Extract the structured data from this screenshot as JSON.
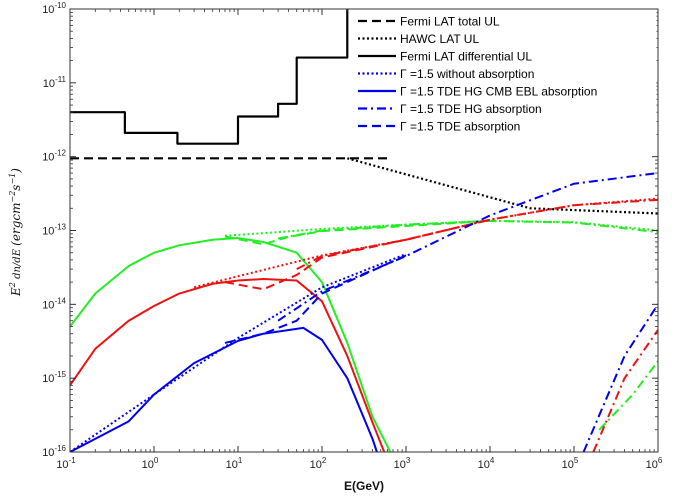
{
  "chart_data": {
    "type": "line",
    "title": "",
    "xlabel": "E(GeV)",
    "ylabel": "E^2 dn/dE (ergcm^-2 s^-1)",
    "xscale": "log",
    "yscale": "log",
    "xlim": [
      0.1,
      1000000
    ],
    "ylim": [
      1e-16,
      1e-10
    ],
    "x_ticks": [
      {
        "value": 0.1,
        "base": "10",
        "exp": "-1"
      },
      {
        "value": 1,
        "base": "10",
        "exp": "0"
      },
      {
        "value": 10,
        "base": "10",
        "exp": "1"
      },
      {
        "value": 100,
        "base": "10",
        "exp": "2"
      },
      {
        "value": 1000,
        "base": "10",
        "exp": "3"
      },
      {
        "value": 10000,
        "base": "10",
        "exp": "4"
      },
      {
        "value": 100000,
        "base": "10",
        "exp": "5"
      },
      {
        "value": 1000000,
        "base": "10",
        "exp": "6"
      }
    ],
    "y_ticks": [
      {
        "value": 1e-16,
        "base": "10",
        "exp": "-16"
      },
      {
        "value": 1e-15,
        "base": "10",
        "exp": "-15"
      },
      {
        "value": 1e-14,
        "base": "10",
        "exp": "-14"
      },
      {
        "value": 1e-13,
        "base": "10",
        "exp": "-13"
      },
      {
        "value": 1e-12,
        "base": "10",
        "exp": "-12"
      },
      {
        "value": 1e-11,
        "base": "10",
        "exp": "-11"
      },
      {
        "value": 1e-10,
        "base": "10",
        "exp": "-10"
      }
    ],
    "grid": false,
    "legend_position": "top-right",
    "legend": [
      {
        "label": "Fermi LAT total UL",
        "color": "#000000",
        "style": "dashed"
      },
      {
        "label": "HAWC LAT UL",
        "color": "#000000",
        "style": "dotted"
      },
      {
        "label": "Fermi LAT differential UL",
        "color": "#000000",
        "style": "solid"
      },
      {
        "label": "Γ =1.5 without absorption",
        "color": "#0000ee",
        "style": "dotted"
      },
      {
        "label": "Γ =1.5 TDE HG CMB EBL absorption",
        "color": "#0000ee",
        "style": "solid"
      },
      {
        "label": "Γ =1.5 TDE HG absorption",
        "color": "#0000ee",
        "style": "dashdot"
      },
      {
        "label": "Γ =1.5 TDE absorption",
        "color": "#0000ee",
        "style": "dashed"
      }
    ],
    "series": [
      {
        "group": "upper-limits",
        "color": "#000000",
        "style": "dashed",
        "points": [
          [
            0.1,
            9.5e-13
          ],
          [
            650,
            9.5e-13
          ]
        ]
      },
      {
        "group": "upper-limits",
        "color": "#000000",
        "style": "dotted",
        "points": [
          [
            200,
            9.5e-13
          ],
          [
            30000,
            2e-13
          ],
          [
            1000000,
            1.7e-13
          ]
        ]
      },
      {
        "group": "upper-limits",
        "color": "#000000",
        "style": "solid",
        "points": [
          [
            0.1,
            4e-12
          ],
          [
            0.45,
            4e-12
          ],
          [
            0.45,
            2.1e-12
          ],
          [
            1.9,
            2.1e-12
          ],
          [
            1.9,
            1.5e-12
          ],
          [
            10,
            1.5e-12
          ],
          [
            10,
            3.5e-12
          ],
          [
            30,
            3.5e-12
          ],
          [
            30,
            5.2e-12
          ],
          [
            50,
            5.2e-12
          ],
          [
            50,
            2.2e-11
          ],
          [
            200,
            2.2e-11
          ],
          [
            200,
            1e-10
          ]
        ]
      },
      {
        "group": "green",
        "color": "#22ee22",
        "style": "dotted",
        "points": [
          [
            7,
            8.5e-14
          ],
          [
            20,
            9.2e-14
          ],
          [
            100,
            1.05e-13
          ],
          [
            1000,
            1.2e-13
          ],
          [
            10000,
            1.35e-13
          ],
          [
            100000,
            1.3e-13
          ],
          [
            1000000,
            1e-13
          ]
        ]
      },
      {
        "group": "green",
        "color": "#22ee22",
        "style": "dashed",
        "points": [
          [
            7,
            8.3e-14
          ],
          [
            20,
            6.5e-14
          ],
          [
            40,
            8.2e-14
          ],
          [
            100,
            9.8e-14
          ],
          [
            1000,
            1.15e-13
          ],
          [
            10000,
            1.35e-13
          ]
        ]
      },
      {
        "group": "green",
        "color": "#22ee22",
        "style": "dashdot",
        "points": [
          [
            30,
            7.8e-14
          ],
          [
            100,
            1e-13
          ],
          [
            1000,
            1.2e-13
          ],
          [
            10000,
            1.35e-13
          ],
          [
            100000,
            1.28e-13
          ],
          [
            1000000,
            9.5e-14
          ]
        ]
      },
      {
        "group": "green",
        "color": "#22ee22",
        "style": "dashdot",
        "points": [
          [
            200000,
            2e-16
          ],
          [
            500000,
            6e-16
          ],
          [
            1000000,
            1.7e-15
          ]
        ]
      },
      {
        "group": "green",
        "color": "#22ee22",
        "style": "solid",
        "points": [
          [
            0.1,
            5e-15
          ],
          [
            0.2,
            1.4e-14
          ],
          [
            0.5,
            3.3e-14
          ],
          [
            1,
            5e-14
          ],
          [
            2,
            6.3e-14
          ],
          [
            5,
            7.5e-14
          ],
          [
            10,
            7.9e-14
          ],
          [
            20,
            7e-14
          ],
          [
            50,
            5e-14
          ],
          [
            100,
            2e-14
          ],
          [
            200,
            3e-15
          ],
          [
            400,
            3e-16
          ],
          [
            650,
            1e-16
          ]
        ]
      },
      {
        "group": "red",
        "color": "#ee1111",
        "style": "dotted",
        "points": [
          [
            3,
            1.7e-14
          ],
          [
            10,
            2.4e-14
          ],
          [
            100,
            4.6e-14
          ],
          [
            1000,
            7.5e-14
          ],
          [
            10000,
            1.4e-13
          ],
          [
            100000,
            2.2e-13
          ],
          [
            1000000,
            2.7e-13
          ]
        ]
      },
      {
        "group": "red",
        "color": "#ee1111",
        "style": "dashed",
        "points": [
          [
            7,
            2e-14
          ],
          [
            20,
            1.6e-14
          ],
          [
            50,
            2.5e-14
          ],
          [
            100,
            4.3e-14
          ],
          [
            1000,
            7.5e-14
          ],
          [
            10000,
            1.4e-13
          ]
        ]
      },
      {
        "group": "red",
        "color": "#ee1111",
        "style": "dashdot",
        "points": [
          [
            50,
            3e-14
          ],
          [
            100,
            4.5e-14
          ],
          [
            1000,
            7.5e-14
          ],
          [
            10000,
            1.4e-13
          ],
          [
            100000,
            2.2e-13
          ],
          [
            1000000,
            2.6e-13
          ]
        ]
      },
      {
        "group": "red",
        "color": "#ee1111",
        "style": "dashdot",
        "points": [
          [
            170000,
            1e-16
          ],
          [
            400000,
            1e-15
          ],
          [
            1000000,
            4.5e-15
          ]
        ]
      },
      {
        "group": "red",
        "color": "#ee1111",
        "style": "solid",
        "points": [
          [
            0.1,
            8e-16
          ],
          [
            0.2,
            2.5e-15
          ],
          [
            0.5,
            6e-15
          ],
          [
            1,
            9.5e-15
          ],
          [
            2,
            1.4e-14
          ],
          [
            5,
            1.9e-14
          ],
          [
            10,
            2.1e-14
          ],
          [
            20,
            2.2e-14
          ],
          [
            50,
            2.1e-14
          ],
          [
            100,
            1.1e-14
          ],
          [
            200,
            2e-15
          ],
          [
            400,
            2.5e-16
          ],
          [
            550,
            1e-16
          ]
        ]
      },
      {
        "group": "blue",
        "color": "#0000ee",
        "style": "dotted",
        "points": [
          [
            0.1,
            1e-16
          ],
          [
            1,
            6e-16
          ],
          [
            10,
            3.5e-15
          ],
          [
            100,
            1.7e-14
          ],
          [
            1000,
            4.8e-14
          ]
        ]
      },
      {
        "group": "blue",
        "color": "#0000ee",
        "style": "dashed",
        "points": [
          [
            7,
            3e-15
          ],
          [
            20,
            4e-15
          ],
          [
            50,
            6e-15
          ],
          [
            100,
            1.4e-14
          ],
          [
            1000,
            4.6e-14
          ]
        ]
      },
      {
        "group": "blue",
        "color": "#0000ee",
        "style": "dashdot",
        "points": [
          [
            30,
            6e-15
          ],
          [
            100,
            1.5e-14
          ],
          [
            1000,
            4.5e-14
          ],
          [
            10000,
            1.6e-13
          ],
          [
            100000,
            4.3e-13
          ],
          [
            1000000,
            6e-13
          ]
        ]
      },
      {
        "group": "blue",
        "color": "#0000ee",
        "style": "dashdot",
        "points": [
          [
            130000,
            1e-16
          ],
          [
            400000,
            2e-15
          ],
          [
            1000000,
            1e-14
          ]
        ]
      },
      {
        "group": "blue",
        "color": "#0000ee",
        "style": "solid",
        "points": [
          [
            0.1,
            1e-16
          ],
          [
            0.5,
            2.6e-16
          ],
          [
            1,
            6e-16
          ],
          [
            3,
            1.6e-15
          ],
          [
            10,
            3.2e-15
          ],
          [
            20,
            4e-15
          ],
          [
            60,
            4.8e-15
          ],
          [
            100,
            3.3e-15
          ],
          [
            200,
            1e-15
          ],
          [
            400,
            1.5e-16
          ],
          [
            450,
            1e-16
          ]
        ]
      }
    ]
  }
}
